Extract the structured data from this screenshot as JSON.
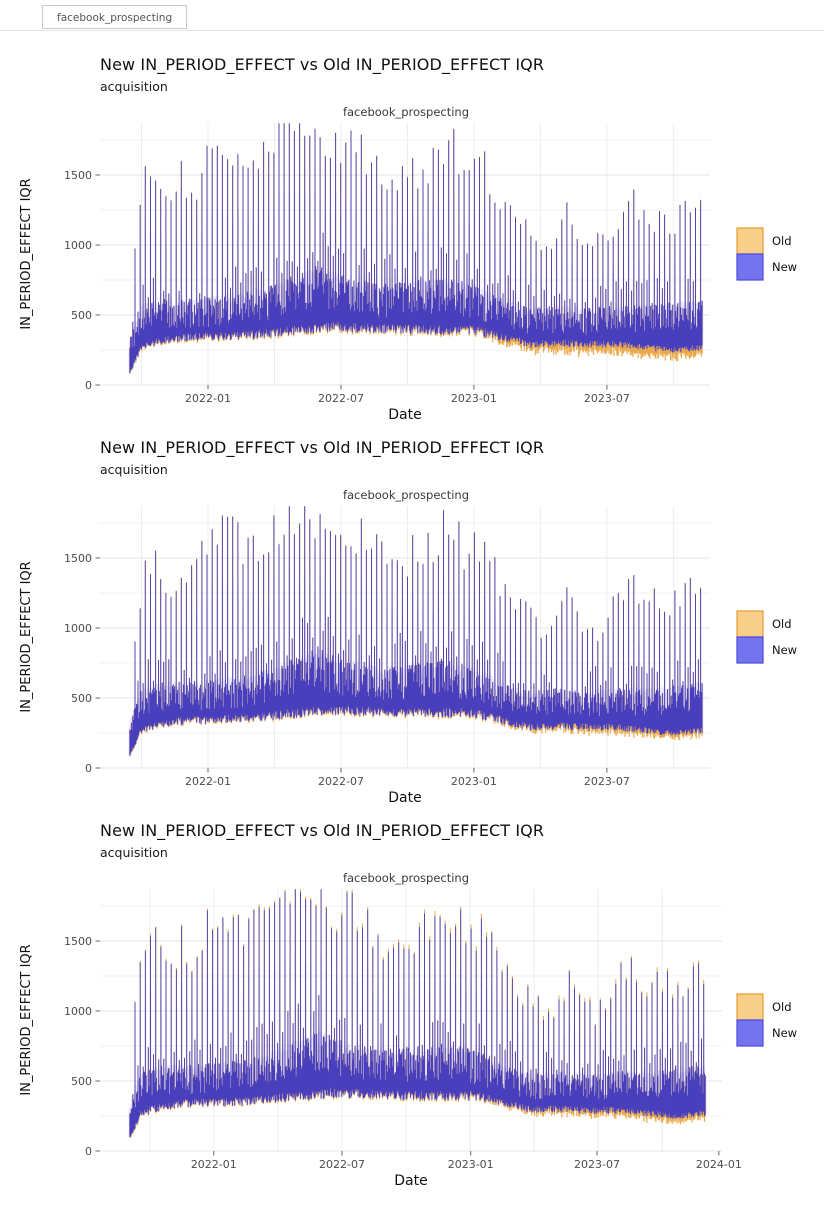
{
  "tab": {
    "label": "facebook_prospecting"
  },
  "colors": {
    "old_fill": "#F7CE8A",
    "old_edge": "#E89B2E",
    "old_haze": "#F2BE6A",
    "new_fill": "#7474EE",
    "new_edge": "#2727CE",
    "new_haze": "#8A8AF0",
    "grid_vertical": "#ececec",
    "grid_major": "#e4e4e4",
    "grid_minor": "#f1f1f1",
    "tick_mark": "#666666",
    "tick_text": "#4d4d4d",
    "axis_text": "#111111"
  },
  "chart_data": [
    {
      "type": "ribbon-interval-timeseries",
      "title": "New IN_PERIOD_EFFECT vs Old IN_PERIOD_EFFECT IQR",
      "subtitle": "acquisition",
      "facet": "facebook_prospecting",
      "xlabel": "Date",
      "ylabel": "IN_PERIOD_EFFECT IQR",
      "y_ticks": [
        0,
        500,
        1000,
        1500
      ],
      "y_minor_ticks": [
        250,
        750,
        1250,
        1750
      ],
      "ylim": [
        0,
        1871
      ],
      "legend": [
        {
          "label": "Old",
          "series": "old"
        },
        {
          "label": "New",
          "series": "new"
        }
      ],
      "legend_position": "right",
      "x_ticks": [
        {
          "label": "2022-01",
          "f": 0.177
        },
        {
          "label": "2022-07",
          "f": 0.395
        },
        {
          "label": "2023-01",
          "f": 0.613
        },
        {
          "label": "2023-07",
          "f": 0.831
        }
      ],
      "x_range_dates": [
        "2021-09-15",
        "2023-11-10"
      ],
      "layout": {
        "panel_x1": 710,
        "series_span": [
          0.049,
          0.987
        ]
      },
      "weekly_peaks": [
        [
          0,
          250
        ],
        [
          0.01,
          1070
        ],
        [
          0.03,
          1530
        ],
        [
          0.05,
          1500
        ],
        [
          0.07,
          1310
        ],
        [
          0.09,
          1465
        ],
        [
          0.11,
          1350
        ],
        [
          0.13,
          1560
        ],
        [
          0.15,
          1660
        ],
        [
          0.17,
          1680
        ],
        [
          0.19,
          1620
        ],
        [
          0.21,
          1560
        ],
        [
          0.23,
          1640
        ],
        [
          0.25,
          1750
        ],
        [
          0.27,
          1780
        ],
        [
          0.29,
          1860
        ],
        [
          0.31,
          1800
        ],
        [
          0.33,
          1750
        ],
        [
          0.35,
          1620
        ],
        [
          0.37,
          1720
        ],
        [
          0.39,
          1690
        ],
        [
          0.41,
          1640
        ],
        [
          0.43,
          1580
        ],
        [
          0.45,
          1460
        ],
        [
          0.47,
          1420
        ],
        [
          0.49,
          1500
        ],
        [
          0.51,
          1560
        ],
        [
          0.53,
          1620
        ],
        [
          0.55,
          1730
        ],
        [
          0.57,
          1650
        ],
        [
          0.59,
          1540
        ],
        [
          0.61,
          1600
        ],
        [
          0.63,
          1450
        ],
        [
          0.65,
          1300
        ],
        [
          0.67,
          1150
        ],
        [
          0.69,
          1100
        ],
        [
          0.71,
          1000
        ],
        [
          0.73,
          950
        ],
        [
          0.75,
          1150
        ],
        [
          0.77,
          1200
        ],
        [
          0.79,
          1050
        ],
        [
          0.81,
          950
        ],
        [
          0.83,
          1050
        ],
        [
          0.85,
          1200
        ],
        [
          0.87,
          1340
        ],
        [
          0.89,
          1250
        ],
        [
          0.91,
          1150
        ],
        [
          0.93,
          1250
        ],
        [
          0.95,
          1150
        ],
        [
          0.97,
          1200
        ],
        [
          1,
          1310
        ]
      ],
      "band_bottom": [
        [
          0,
          90
        ],
        [
          0.02,
          260
        ],
        [
          0.05,
          300
        ],
        [
          0.1,
          330
        ],
        [
          0.2,
          340
        ],
        [
          0.3,
          380
        ],
        [
          0.35,
          400
        ],
        [
          0.5,
          380
        ],
        [
          0.6,
          380
        ],
        [
          0.65,
          330
        ],
        [
          0.7,
          280
        ],
        [
          0.75,
          290
        ],
        [
          0.8,
          280
        ],
        [
          0.85,
          280
        ],
        [
          0.9,
          260
        ],
        [
          0.95,
          240
        ],
        [
          1,
          260
        ]
      ],
      "band_shoulder": [
        [
          0,
          300
        ],
        [
          0.02,
          520
        ],
        [
          0.05,
          560
        ],
        [
          0.1,
          560
        ],
        [
          0.15,
          580
        ],
        [
          0.2,
          600
        ],
        [
          0.25,
          650
        ],
        [
          0.3,
          740
        ],
        [
          0.33,
          780
        ],
        [
          0.38,
          700
        ],
        [
          0.45,
          660
        ],
        [
          0.5,
          680
        ],
        [
          0.55,
          700
        ],
        [
          0.6,
          660
        ],
        [
          0.65,
          560
        ],
        [
          0.7,
          500
        ],
        [
          0.75,
          520
        ],
        [
          0.8,
          500
        ],
        [
          0.85,
          520
        ],
        [
          0.9,
          520
        ],
        [
          0.95,
          540
        ],
        [
          1,
          560
        ]
      ],
      "old_extra_below": [
        [
          0,
          10
        ],
        [
          0.6,
          14
        ],
        [
          0.68,
          40
        ],
        [
          0.8,
          55
        ],
        [
          0.9,
          60
        ],
        [
          1,
          48
        ]
      ],
      "old_extra_above": [
        [
          0,
          4
        ],
        [
          1,
          4
        ]
      ]
    },
    {
      "type": "ribbon-interval-timeseries",
      "title": "New IN_PERIOD_EFFECT vs Old IN_PERIOD_EFFECT IQR",
      "subtitle": "acquisition",
      "facet": "facebook_prospecting",
      "xlabel": "Date",
      "ylabel": "IN_PERIOD_EFFECT IQR",
      "y_ticks": [
        0,
        500,
        1000,
        1500
      ],
      "y_minor_ticks": [
        250,
        750,
        1250,
        1750
      ],
      "ylim": [
        0,
        1871
      ],
      "legend": [
        {
          "label": "Old",
          "series": "old"
        },
        {
          "label": "New",
          "series": "new"
        }
      ],
      "legend_position": "right",
      "x_ticks": [
        {
          "label": "2022-01",
          "f": 0.177
        },
        {
          "label": "2022-07",
          "f": 0.395
        },
        {
          "label": "2023-01",
          "f": 0.613
        },
        {
          "label": "2023-07",
          "f": 0.831
        }
      ],
      "x_range_dates": [
        "2021-09-15",
        "2023-11-10"
      ],
      "layout": {
        "panel_x1": 710,
        "series_span": [
          0.049,
          0.987
        ]
      },
      "weekly_peaks": [
        [
          0,
          250
        ],
        [
          0.01,
          1070
        ],
        [
          0.03,
          1530
        ],
        [
          0.05,
          1500
        ],
        [
          0.07,
          1310
        ],
        [
          0.09,
          1465
        ],
        [
          0.11,
          1350
        ],
        [
          0.13,
          1560
        ],
        [
          0.15,
          1660
        ],
        [
          0.17,
          1680
        ],
        [
          0.19,
          1620
        ],
        [
          0.21,
          1560
        ],
        [
          0.23,
          1640
        ],
        [
          0.25,
          1750
        ],
        [
          0.27,
          1780
        ],
        [
          0.29,
          1860
        ],
        [
          0.31,
          1800
        ],
        [
          0.33,
          1750
        ],
        [
          0.35,
          1620
        ],
        [
          0.37,
          1720
        ],
        [
          0.39,
          1690
        ],
        [
          0.41,
          1640
        ],
        [
          0.43,
          1580
        ],
        [
          0.45,
          1460
        ],
        [
          0.47,
          1420
        ],
        [
          0.49,
          1500
        ],
        [
          0.51,
          1560
        ],
        [
          0.53,
          1620
        ],
        [
          0.55,
          1730
        ],
        [
          0.57,
          1650
        ],
        [
          0.59,
          1540
        ],
        [
          0.61,
          1600
        ],
        [
          0.63,
          1450
        ],
        [
          0.65,
          1300
        ],
        [
          0.67,
          1150
        ],
        [
          0.69,
          1100
        ],
        [
          0.71,
          1000
        ],
        [
          0.73,
          950
        ],
        [
          0.75,
          1150
        ],
        [
          0.77,
          1200
        ],
        [
          0.79,
          1050
        ],
        [
          0.81,
          950
        ],
        [
          0.83,
          1050
        ],
        [
          0.85,
          1200
        ],
        [
          0.87,
          1340
        ],
        [
          0.89,
          1250
        ],
        [
          0.91,
          1150
        ],
        [
          0.93,
          1250
        ],
        [
          0.95,
          1150
        ],
        [
          0.97,
          1200
        ],
        [
          1,
          1310
        ]
      ],
      "band_bottom": [
        [
          0,
          90
        ],
        [
          0.02,
          260
        ],
        [
          0.05,
          300
        ],
        [
          0.1,
          330
        ],
        [
          0.2,
          340
        ],
        [
          0.3,
          380
        ],
        [
          0.35,
          400
        ],
        [
          0.5,
          380
        ],
        [
          0.6,
          380
        ],
        [
          0.65,
          330
        ],
        [
          0.7,
          280
        ],
        [
          0.75,
          290
        ],
        [
          0.8,
          280
        ],
        [
          0.85,
          280
        ],
        [
          0.9,
          260
        ],
        [
          0.95,
          240
        ],
        [
          1,
          260
        ]
      ],
      "band_shoulder": [
        [
          0,
          300
        ],
        [
          0.02,
          520
        ],
        [
          0.05,
          560
        ],
        [
          0.1,
          560
        ],
        [
          0.15,
          580
        ],
        [
          0.2,
          600
        ],
        [
          0.25,
          650
        ],
        [
          0.3,
          740
        ],
        [
          0.33,
          780
        ],
        [
          0.38,
          700
        ],
        [
          0.45,
          660
        ],
        [
          0.5,
          680
        ],
        [
          0.55,
          700
        ],
        [
          0.6,
          660
        ],
        [
          0.65,
          560
        ],
        [
          0.7,
          500
        ],
        [
          0.75,
          520
        ],
        [
          0.8,
          500
        ],
        [
          0.85,
          520
        ],
        [
          0.9,
          520
        ],
        [
          0.95,
          540
        ],
        [
          1,
          560
        ]
      ],
      "old_extra_below": [
        [
          0,
          8
        ],
        [
          0.6,
          12
        ],
        [
          0.7,
          22
        ],
        [
          0.85,
          32
        ],
        [
          1,
          28
        ]
      ],
      "old_extra_above": [
        [
          0,
          5
        ],
        [
          1,
          6
        ]
      ]
    },
    {
      "type": "ribbon-interval-timeseries",
      "title": "New IN_PERIOD_EFFECT vs Old IN_PERIOD_EFFECT IQR",
      "subtitle": "acquisition",
      "facet": "facebook_prospecting",
      "xlabel": "Date",
      "ylabel": "IN_PERIOD_EFFECT IQR",
      "y_ticks": [
        0,
        500,
        1000,
        1500
      ],
      "y_minor_ticks": [
        250,
        750,
        1250,
        1750
      ],
      "ylim": [
        0,
        1871
      ],
      "legend": [
        {
          "label": "Old",
          "series": "old"
        },
        {
          "label": "New",
          "series": "new"
        }
      ],
      "legend_position": "right",
      "x_ticks": [
        {
          "label": "2022-01",
          "f": 0.183
        },
        {
          "label": "2022-07",
          "f": 0.389
        },
        {
          "label": "2023-01",
          "f": 0.596
        },
        {
          "label": "2023-07",
          "f": 0.799
        },
        {
          "label": "2024-01",
          "f": 0.995
        }
      ],
      "x_range_dates": [
        "2021-09-15",
        "2023-11-10"
      ],
      "layout": {
        "panel_x1": 722,
        "series_span": [
          0.048,
          0.973
        ]
      },
      "weekly_peaks": [
        [
          0,
          250
        ],
        [
          0.01,
          1070
        ],
        [
          0.03,
          1530
        ],
        [
          0.05,
          1500
        ],
        [
          0.07,
          1310
        ],
        [
          0.09,
          1465
        ],
        [
          0.11,
          1350
        ],
        [
          0.13,
          1560
        ],
        [
          0.15,
          1660
        ],
        [
          0.17,
          1680
        ],
        [
          0.19,
          1620
        ],
        [
          0.21,
          1560
        ],
        [
          0.23,
          1640
        ],
        [
          0.25,
          1750
        ],
        [
          0.27,
          1780
        ],
        [
          0.29,
          1860
        ],
        [
          0.31,
          1800
        ],
        [
          0.33,
          1750
        ],
        [
          0.35,
          1620
        ],
        [
          0.37,
          1720
        ],
        [
          0.39,
          1690
        ],
        [
          0.41,
          1640
        ],
        [
          0.43,
          1580
        ],
        [
          0.45,
          1460
        ],
        [
          0.47,
          1420
        ],
        [
          0.49,
          1500
        ],
        [
          0.51,
          1560
        ],
        [
          0.53,
          1620
        ],
        [
          0.55,
          1730
        ],
        [
          0.57,
          1650
        ],
        [
          0.59,
          1540
        ],
        [
          0.61,
          1600
        ],
        [
          0.63,
          1450
        ],
        [
          0.65,
          1300
        ],
        [
          0.67,
          1150
        ],
        [
          0.69,
          1100
        ],
        [
          0.71,
          1000
        ],
        [
          0.73,
          950
        ],
        [
          0.75,
          1150
        ],
        [
          0.77,
          1200
        ],
        [
          0.79,
          1050
        ],
        [
          0.81,
          950
        ],
        [
          0.83,
          1050
        ],
        [
          0.85,
          1200
        ],
        [
          0.87,
          1340
        ],
        [
          0.89,
          1250
        ],
        [
          0.91,
          1150
        ],
        [
          0.93,
          1250
        ],
        [
          0.95,
          1150
        ],
        [
          0.97,
          1200
        ],
        [
          1,
          1310
        ]
      ],
      "band_bottom": [
        [
          0,
          90
        ],
        [
          0.02,
          260
        ],
        [
          0.05,
          300
        ],
        [
          0.1,
          330
        ],
        [
          0.2,
          340
        ],
        [
          0.3,
          380
        ],
        [
          0.35,
          400
        ],
        [
          0.5,
          380
        ],
        [
          0.6,
          380
        ],
        [
          0.65,
          330
        ],
        [
          0.7,
          280
        ],
        [
          0.75,
          290
        ],
        [
          0.8,
          280
        ],
        [
          0.85,
          280
        ],
        [
          0.9,
          260
        ],
        [
          0.95,
          240
        ],
        [
          1,
          260
        ]
      ],
      "band_shoulder": [
        [
          0,
          300
        ],
        [
          0.02,
          520
        ],
        [
          0.05,
          560
        ],
        [
          0.1,
          560
        ],
        [
          0.15,
          580
        ],
        [
          0.2,
          600
        ],
        [
          0.25,
          650
        ],
        [
          0.3,
          740
        ],
        [
          0.33,
          780
        ],
        [
          0.38,
          700
        ],
        [
          0.45,
          660
        ],
        [
          0.5,
          680
        ],
        [
          0.55,
          700
        ],
        [
          0.6,
          660
        ],
        [
          0.65,
          560
        ],
        [
          0.7,
          500
        ],
        [
          0.75,
          520
        ],
        [
          0.8,
          500
        ],
        [
          0.85,
          520
        ],
        [
          0.9,
          520
        ],
        [
          0.95,
          540
        ],
        [
          1,
          560
        ]
      ],
      "old_extra_below": [
        [
          0,
          8
        ],
        [
          0.6,
          12
        ],
        [
          0.75,
          28
        ],
        [
          0.9,
          38
        ],
        [
          1,
          32
        ]
      ],
      "old_extra_above": [
        [
          0,
          10
        ],
        [
          0.25,
          14
        ],
        [
          0.4,
          20
        ],
        [
          0.55,
          26
        ],
        [
          0.7,
          22
        ],
        [
          0.85,
          24
        ],
        [
          1,
          20
        ]
      ]
    }
  ]
}
